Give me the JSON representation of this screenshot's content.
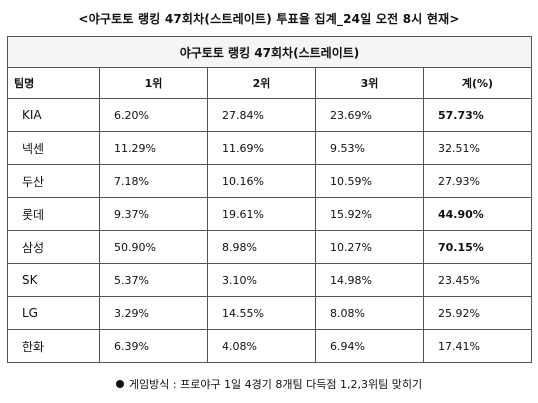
{
  "page_title": "<야구토토 랭킹 47회차(스트레이트) 투표율 집계_24일 오전 8시 현재>",
  "table": {
    "caption": "야구토토 랭킹 47회차(스트레이트)",
    "headers": [
      "팀명",
      "1위",
      "2위",
      "3위",
      "계(%)"
    ],
    "rows": [
      {
        "team": "KIA",
        "first": "6.20%",
        "second": "27.84%",
        "third": "23.69%",
        "total": "57.73%",
        "total_bold": true
      },
      {
        "team": "넥센",
        "first": "11.29%",
        "second": "11.69%",
        "third": "9.53%",
        "total": "32.51%",
        "total_bold": false
      },
      {
        "team": "두산",
        "first": "7.18%",
        "second": "10.16%",
        "third": "10.59%",
        "total": "27.93%",
        "total_bold": false
      },
      {
        "team": "롯데",
        "first": "9.37%",
        "second": "19.61%",
        "third": "15.92%",
        "total": "44.90%",
        "total_bold": true
      },
      {
        "team": "삼성",
        "first": "50.90%",
        "second": "8.98%",
        "third": "10.27%",
        "total": "70.15%",
        "total_bold": true
      },
      {
        "team": "SK",
        "first": "5.37%",
        "second": "3.10%",
        "third": "14.98%",
        "total": "23.45%",
        "total_bold": false
      },
      {
        "team": "LG",
        "first": "3.29%",
        "second": "14.55%",
        "third": "8.08%",
        "total": "25.92%",
        "total_bold": false
      },
      {
        "team": "한화",
        "first": "6.39%",
        "second": "4.08%",
        "third": "6.94%",
        "total": "17.41%",
        "total_bold": false
      }
    ]
  },
  "footnote": "게임방식 : 프로야구 1일 4경기 8개팀 다득점 1,2,3위팀 맞히기",
  "colors": {
    "caption_bg": "#f5f5f5",
    "border": "#555555",
    "text": "#111111"
  }
}
